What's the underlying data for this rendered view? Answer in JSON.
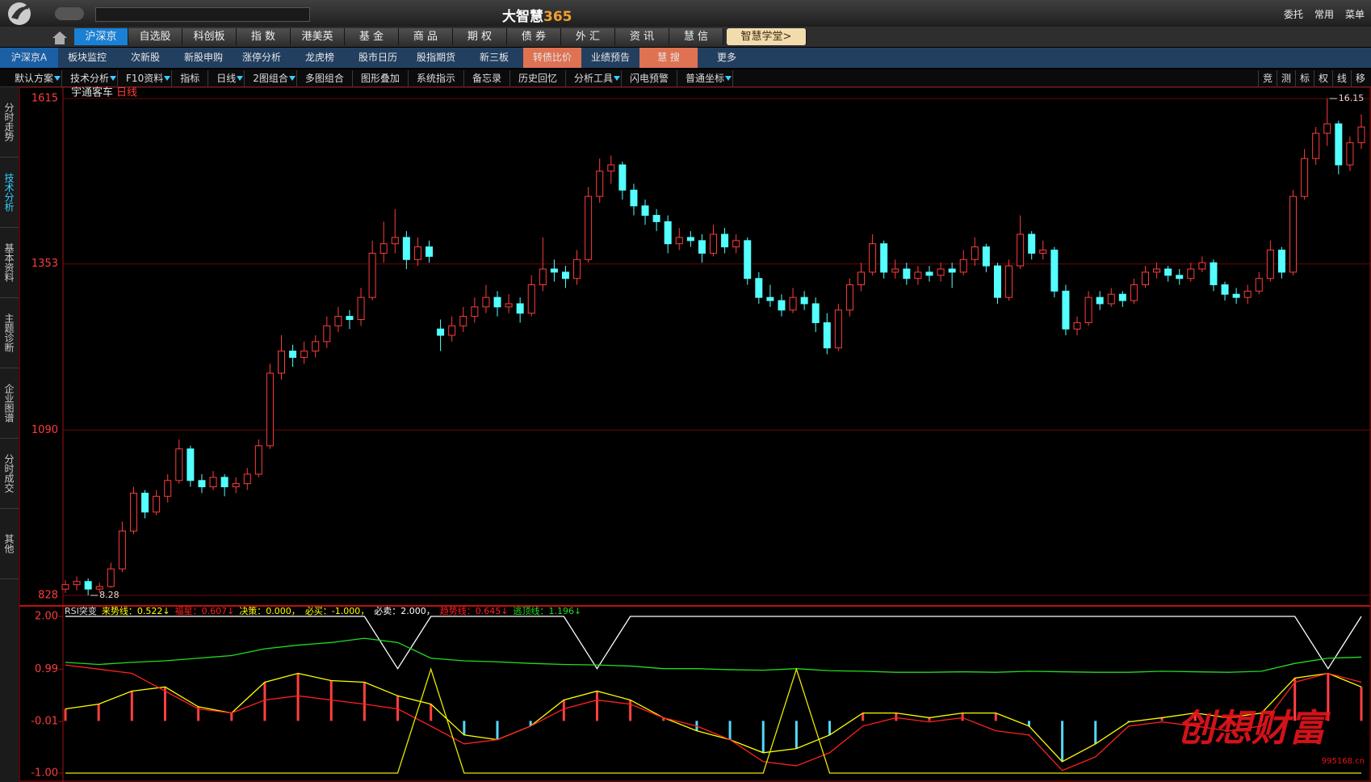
{
  "app": {
    "title_main": "大智慧",
    "title_num": "365",
    "top_right": [
      "委托",
      "常用",
      "菜单"
    ]
  },
  "nav_tabs": [
    "沪深京",
    "自选股",
    "科创板",
    "指 数",
    "港美英",
    "基 金",
    "商 品",
    "期 权",
    "债 券",
    "外 汇",
    "资 讯",
    "慧 信",
    "智慧学堂>"
  ],
  "sub_tabs": [
    "沪深京A",
    "板块监控",
    "次新股",
    "新股申购",
    "涨停分析",
    "龙虎榜",
    "股市日历",
    "股指期货",
    "新三板",
    "转债比价",
    "业绩预告",
    "慧 搜",
    "更多"
  ],
  "toolbar": [
    "默认方案",
    "技术分析",
    "F10资料",
    "指标",
    "日线",
    "2图组合",
    "多图组合",
    "图形叠加",
    "系统指示",
    "备忘录",
    "历史回忆",
    "分析工具",
    "闪电预警",
    "普通坐标"
  ],
  "toolbar_right": [
    "竞",
    "测",
    "标",
    "权",
    "线",
    "移"
  ],
  "side_tabs": [
    "分时走势",
    "技术分析",
    "基本资料",
    "主题诊断",
    "企业图谱",
    "分时成交",
    "其他"
  ],
  "chart_data": [
    {
      "type": "candlestick",
      "title": "宇通客车",
      "period": "日线",
      "up_color": "#ff3c3c",
      "down_color": "#54ffff",
      "grid": true,
      "ylim": [
        828,
        1615
      ],
      "yticks": [
        828,
        1090,
        1353,
        1615
      ],
      "max_label": "16.15",
      "min_label": "8.28",
      "ohlc": [
        [
          838,
          852,
          832,
          845
        ],
        [
          845,
          858,
          836,
          850
        ],
        [
          850,
          855,
          828,
          838
        ],
        [
          838,
          848,
          832,
          842
        ],
        [
          842,
          880,
          840,
          870
        ],
        [
          870,
          945,
          865,
          930
        ],
        [
          930,
          1000,
          925,
          990
        ],
        [
          990,
          995,
          950,
          960
        ],
        [
          960,
          995,
          955,
          985
        ],
        [
          985,
          1020,
          975,
          1010
        ],
        [
          1010,
          1075,
          1005,
          1060
        ],
        [
          1060,
          1065,
          1000,
          1010
        ],
        [
          1010,
          1020,
          990,
          1000
        ],
        [
          1000,
          1025,
          995,
          1015
        ],
        [
          1015,
          1020,
          985,
          1000
        ],
        [
          1000,
          1015,
          990,
          1005
        ],
        [
          1005,
          1030,
          995,
          1020
        ],
        [
          1020,
          1075,
          1015,
          1065
        ],
        [
          1065,
          1195,
          1060,
          1180
        ],
        [
          1180,
          1240,
          1170,
          1215
        ],
        [
          1215,
          1225,
          1190,
          1205
        ],
        [
          1205,
          1230,
          1195,
          1215
        ],
        [
          1215,
          1240,
          1205,
          1230
        ],
        [
          1230,
          1270,
          1220,
          1255
        ],
        [
          1255,
          1285,
          1245,
          1270
        ],
        [
          1270,
          1280,
          1250,
          1265
        ],
        [
          1265,
          1315,
          1255,
          1300
        ],
        [
          1300,
          1390,
          1295,
          1370
        ],
        [
          1370,
          1420,
          1355,
          1385
        ],
        [
          1385,
          1440,
          1370,
          1395
        ],
        [
          1395,
          1405,
          1345,
          1360
        ],
        [
          1360,
          1395,
          1350,
          1380
        ],
        [
          1380,
          1390,
          1355,
          1365
        ],
        [
          1250,
          1265,
          1215,
          1240
        ],
        [
          1240,
          1270,
          1230,
          1255
        ],
        [
          1255,
          1285,
          1245,
          1270
        ],
        [
          1270,
          1300,
          1260,
          1285
        ],
        [
          1285,
          1320,
          1275,
          1300
        ],
        [
          1300,
          1310,
          1270,
          1285
        ],
        [
          1285,
          1305,
          1275,
          1290
        ],
        [
          1290,
          1300,
          1260,
          1275
        ],
        [
          1275,
          1335,
          1270,
          1320
        ],
        [
          1320,
          1395,
          1310,
          1345
        ],
        [
          1345,
          1360,
          1325,
          1340
        ],
        [
          1340,
          1350,
          1315,
          1330
        ],
        [
          1330,
          1375,
          1320,
          1360
        ],
        [
          1360,
          1475,
          1355,
          1460
        ],
        [
          1460,
          1520,
          1450,
          1500
        ],
        [
          1500,
          1525,
          1480,
          1510
        ],
        [
          1510,
          1515,
          1455,
          1470
        ],
        [
          1470,
          1480,
          1430,
          1445
        ],
        [
          1445,
          1455,
          1415,
          1430
        ],
        [
          1430,
          1440,
          1405,
          1420
        ],
        [
          1420,
          1430,
          1370,
          1385
        ],
        [
          1385,
          1410,
          1375,
          1395
        ],
        [
          1395,
          1405,
          1380,
          1390
        ],
        [
          1390,
          1400,
          1355,
          1370
        ],
        [
          1370,
          1415,
          1365,
          1400
        ],
        [
          1400,
          1410,
          1370,
          1380
        ],
        [
          1380,
          1400,
          1370,
          1390
        ],
        [
          1390,
          1395,
          1320,
          1330
        ],
        [
          1330,
          1340,
          1290,
          1300
        ],
        [
          1300,
          1320,
          1285,
          1295
        ],
        [
          1295,
          1305,
          1270,
          1280
        ],
        [
          1280,
          1315,
          1275,
          1300
        ],
        [
          1300,
          1310,
          1280,
          1290
        ],
        [
          1290,
          1300,
          1245,
          1260
        ],
        [
          1260,
          1275,
          1210,
          1220
        ],
        [
          1220,
          1290,
          1215,
          1280
        ],
        [
          1280,
          1330,
          1270,
          1320
        ],
        [
          1320,
          1355,
          1310,
          1340
        ],
        [
          1340,
          1400,
          1335,
          1385
        ],
        [
          1385,
          1390,
          1330,
          1340
        ],
        [
          1340,
          1360,
          1330,
          1345
        ],
        [
          1345,
          1355,
          1320,
          1330
        ],
        [
          1330,
          1350,
          1320,
          1340
        ],
        [
          1340,
          1350,
          1325,
          1335
        ],
        [
          1335,
          1355,
          1325,
          1345
        ],
        [
          1345,
          1355,
          1315,
          1340
        ],
        [
          1340,
          1375,
          1335,
          1360
        ],
        [
          1360,
          1395,
          1350,
          1380
        ],
        [
          1380,
          1385,
          1340,
          1350
        ],
        [
          1350,
          1355,
          1290,
          1300
        ],
        [
          1300,
          1360,
          1295,
          1350
        ],
        [
          1350,
          1430,
          1345,
          1400
        ],
        [
          1400,
          1405,
          1360,
          1370
        ],
        [
          1370,
          1390,
          1360,
          1375
        ],
        [
          1375,
          1380,
          1300,
          1310
        ],
        [
          1310,
          1320,
          1240,
          1250
        ],
        [
          1250,
          1270,
          1240,
          1260
        ],
        [
          1260,
          1310,
          1255,
          1300
        ],
        [
          1300,
          1310,
          1280,
          1290
        ],
        [
          1290,
          1315,
          1285,
          1305
        ],
        [
          1305,
          1310,
          1285,
          1295
        ],
        [
          1295,
          1330,
          1290,
          1320
        ],
        [
          1320,
          1350,
          1315,
          1340
        ],
        [
          1340,
          1355,
          1330,
          1345
        ],
        [
          1345,
          1350,
          1325,
          1335
        ],
        [
          1335,
          1345,
          1320,
          1330
        ],
        [
          1330,
          1355,
          1325,
          1345
        ],
        [
          1345,
          1365,
          1340,
          1355
        ],
        [
          1355,
          1360,
          1310,
          1320
        ],
        [
          1320,
          1325,
          1295,
          1305
        ],
        [
          1305,
          1315,
          1290,
          1300
        ],
        [
          1300,
          1320,
          1290,
          1310
        ],
        [
          1310,
          1340,
          1305,
          1330
        ],
        [
          1330,
          1390,
          1325,
          1375
        ],
        [
          1375,
          1380,
          1330,
          1340
        ],
        [
          1340,
          1470,
          1335,
          1460
        ],
        [
          1460,
          1535,
          1455,
          1520
        ],
        [
          1520,
          1570,
          1510,
          1560
        ],
        [
          1560,
          1615,
          1540,
          1575
        ],
        [
          1575,
          1580,
          1495,
          1510
        ],
        [
          1510,
          1555,
          1500,
          1545
        ],
        [
          1545,
          1590,
          1535,
          1570
        ]
      ]
    },
    {
      "type": "indicator",
      "title": "RSI突变",
      "legend": [
        {
          "text": "来势线：0.522↓",
          "color": "#ffff00"
        },
        {
          "text": "福星：0.607↓",
          "color": "#ff2020"
        },
        {
          "text": "决策：0.000，",
          "color": "#ffff00"
        },
        {
          "text": "必买：-1.000，",
          "color": "#ffff00"
        },
        {
          "text": "必卖：2.000，",
          "color": "#ffffff"
        },
        {
          "text": "趋势线：0.645↓",
          "color": "#ff2020"
        },
        {
          "text": "逃顶线：1.196↓",
          "color": "#22dd22"
        }
      ],
      "ylim": [
        -1,
        2
      ],
      "yticks": [
        {
          "value": 2,
          "label": "2.00"
        },
        0.99,
        -0.01,
        {
          "value": -1,
          "label": "-1.00"
        }
      ],
      "bars": {
        "up_color": "#ff4040",
        "down_color": "#54d8ff",
        "values": [
          0.23,
          0.32,
          0.57,
          0.65,
          0.27,
          0.15,
          0.74,
          0.91,
          0.77,
          0.74,
          0.48,
          0.32,
          -0.27,
          -0.36,
          -0.1,
          0.4,
          0.57,
          0.4,
          0.06,
          -0.19,
          -0.36,
          -0.61,
          -0.53,
          -0.27,
          0.15,
          0.15,
          0.06,
          0.15,
          0.15,
          -0.1,
          -0.78,
          -0.44,
          -0.02,
          0.06,
          0.15,
          0.06,
          0.15,
          0.82,
          0.91,
          0.65
        ]
      },
      "series": [
        {
          "color": "#ffffff",
          "values": [
            2,
            2,
            2,
            2,
            2,
            2,
            2,
            2,
            2,
            2,
            1,
            2,
            2,
            2,
            2,
            2,
            1,
            2,
            2,
            2,
            2,
            2,
            2,
            2,
            2,
            2,
            2,
            2,
            2,
            2,
            2,
            2,
            2,
            2,
            2,
            2,
            2,
            2,
            1,
            2
          ]
        },
        {
          "color": "#22dd22",
          "values": [
            1.12,
            1.08,
            1.12,
            1.15,
            1.2,
            1.25,
            1.38,
            1.45,
            1.5,
            1.58,
            1.5,
            1.2,
            1.15,
            1.13,
            1.1,
            1.08,
            1.07,
            1.05,
            1.0,
            1.0,
            0.98,
            0.97,
            1.0,
            0.96,
            0.95,
            0.93,
            0.93,
            0.94,
            0.93,
            0.95,
            0.94,
            0.93,
            0.93,
            0.95,
            0.94,
            0.93,
            0.95,
            1.1,
            1.2,
            1.22
          ]
        },
        {
          "color": "#ffff00",
          "values": [
            0.23,
            0.32,
            0.57,
            0.65,
            0.27,
            0.15,
            0.74,
            0.91,
            0.77,
            0.74,
            0.48,
            0.32,
            -0.27,
            -0.36,
            -0.1,
            0.4,
            0.57,
            0.4,
            0.06,
            -0.19,
            -0.36,
            -0.61,
            -0.53,
            -0.27,
            0.15,
            0.15,
            0.06,
            0.15,
            0.15,
            -0.1,
            -0.78,
            -0.44,
            -0.02,
            0.06,
            0.15,
            0.06,
            0.15,
            0.82,
            0.91,
            0.65
          ]
        },
        {
          "color": "#ff2020",
          "values": [
            1.07,
            0.99,
            0.91,
            0.57,
            0.23,
            0.15,
            0.4,
            0.48,
            0.4,
            0.32,
            0.23,
            -0.1,
            -0.44,
            -0.36,
            -0.1,
            0.23,
            0.4,
            0.32,
            0.06,
            -0.1,
            -0.36,
            -0.78,
            -0.86,
            -0.61,
            -0.1,
            0.06,
            -0.02,
            0.06,
            -0.19,
            -0.27,
            -0.95,
            -0.69,
            -0.1,
            -0.02,
            -0.1,
            -0.19,
            -0.1,
            0.74,
            0.91,
            0.74
          ]
        },
        {
          "color": "#e8e800",
          "values": [
            -1,
            -1,
            -1,
            -1,
            -1,
            -1,
            -1,
            -1,
            -1,
            -1,
            -1,
            0.99,
            -1,
            -1,
            -1,
            -1,
            -1,
            -1,
            -1,
            -1,
            -1,
            -1,
            0.99,
            -1,
            -1,
            -1,
            -1,
            -1,
            -1,
            -1,
            -1,
            -1,
            -1,
            -1,
            -1,
            -1,
            -1,
            -1,
            -1,
            -1
          ]
        }
      ]
    }
  ],
  "watermark": {
    "text": "创想财富",
    "site": "995168.cn"
  }
}
